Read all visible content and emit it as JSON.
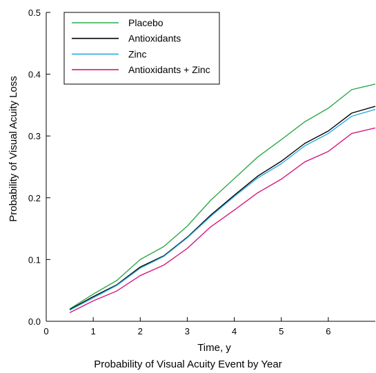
{
  "chart_data": {
    "type": "line",
    "xlabel": "Time, y",
    "ylabel": "Probability of Visual Acuity Loss",
    "xlim": [
      0,
      7
    ],
    "ylim": [
      0,
      0.5
    ],
    "x_ticks": [
      "0",
      "1",
      "2",
      "3",
      "4",
      "5",
      "6"
    ],
    "y_ticks": [
      "0.0",
      "0.1",
      "0.2",
      "0.3",
      "0.4",
      "0.5"
    ],
    "grid": false,
    "legend_position": "top-left",
    "x": [
      0.5,
      1,
      1.5,
      2,
      2.5,
      3,
      3.5,
      4,
      4.5,
      5,
      5.5,
      6,
      6.5,
      7
    ],
    "series": [
      {
        "name": "Placebo",
        "color": "#2ea84a",
        "values": [
          0.02,
          0.044,
          0.066,
          0.1,
          0.121,
          0.154,
          0.196,
          0.231,
          0.266,
          0.294,
          0.323,
          0.345,
          0.375,
          0.384
        ]
      },
      {
        "name": "Antioxidants",
        "color": "#000000",
        "values": [
          0.019,
          0.04,
          0.059,
          0.088,
          0.106,
          0.136,
          0.172,
          0.204,
          0.235,
          0.259,
          0.288,
          0.308,
          0.337,
          0.348
        ]
      },
      {
        "name": "Zinc",
        "color": "#29abe2",
        "values": [
          0.018,
          0.038,
          0.058,
          0.086,
          0.105,
          0.135,
          0.17,
          0.202,
          0.232,
          0.255,
          0.284,
          0.304,
          0.332,
          0.343
        ]
      },
      {
        "name": "Antioxidants + Zinc",
        "color": "#d6177d",
        "values": [
          0.014,
          0.033,
          0.049,
          0.074,
          0.091,
          0.118,
          0.153,
          0.18,
          0.208,
          0.23,
          0.258,
          0.275,
          0.304,
          0.313
        ]
      }
    ]
  },
  "caption": "Probability of Visual Acuity Event by Year"
}
